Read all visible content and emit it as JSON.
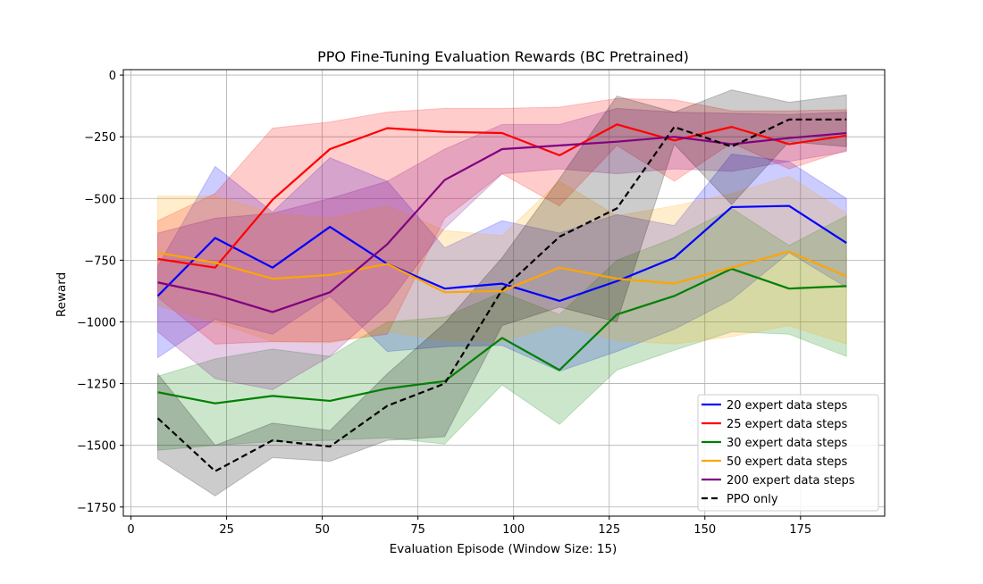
{
  "chart_data": {
    "type": "line",
    "title": "PPO Fine-Tuning Evaluation Rewards (BC Pretrained)",
    "xlabel": "Evaluation Episode (Window Size: 15)",
    "ylabel": "Reward",
    "xlim": [
      -2,
      197
    ],
    "ylim": [
      -1787,
      22
    ],
    "xticks": [
      0,
      25,
      50,
      75,
      100,
      125,
      150,
      175
    ],
    "yticks": [
      0,
      -250,
      -500,
      -750,
      -1000,
      -1250,
      -1500,
      -1750
    ],
    "xtick_labels": [
      "0",
      "25",
      "50",
      "75",
      "100",
      "125",
      "150",
      "175"
    ],
    "ytick_labels": [
      "0",
      "−250",
      "−500",
      "−750",
      "−1000",
      "−1250",
      "−1500",
      "−1750"
    ],
    "grid": true,
    "legend_position": "lower-right",
    "x": [
      7,
      22,
      37,
      52,
      67,
      82,
      97,
      112,
      127,
      142,
      157,
      172,
      187
    ],
    "series": [
      {
        "name": "20 expert data steps",
        "color": "#0000ff",
        "dash": "solid",
        "values": [
          -895,
          -660,
          -780,
          -615,
          -765,
          -865,
          -845,
          -915,
          -835,
          -740,
          -535,
          -530,
          -680
        ],
        "upper": [
          -775,
          -370,
          -555,
          -335,
          -430,
          -700,
          -590,
          -640,
          -565,
          -610,
          -320,
          -350,
          -500
        ],
        "lower": [
          -1145,
          -990,
          -1050,
          -895,
          -1120,
          -1100,
          -1095,
          -1200,
          -1120,
          -1030,
          -910,
          -720,
          -860
        ]
      },
      {
        "name": "25 expert data steps",
        "color": "#ff0000",
        "dash": "solid",
        "values": [
          -745,
          -780,
          -505,
          -300,
          -215,
          -230,
          -235,
          -325,
          -200,
          -265,
          -210,
          -280,
          -245
        ],
        "upper": [
          -590,
          -480,
          -215,
          -190,
          -150,
          -135,
          -135,
          -130,
          -95,
          -100,
          -145,
          -145,
          -140
        ],
        "lower": [
          -900,
          -1090,
          -1080,
          -1080,
          -1050,
          -580,
          -400,
          -530,
          -285,
          -430,
          -275,
          -380,
          -305
        ]
      },
      {
        "name": "30 expert data steps",
        "color": "#008000",
        "dash": "solid",
        "values": [
          -1285,
          -1330,
          -1300,
          -1320,
          -1270,
          -1240,
          -1065,
          -1195,
          -970,
          -895,
          -785,
          -865,
          -855
        ],
        "upper": [
          -1220,
          -1150,
          -1110,
          -1140,
          -1000,
          -980,
          -880,
          -970,
          -750,
          -660,
          -540,
          -690,
          -570
        ],
        "lower": [
          -1520,
          -1500,
          -1485,
          -1480,
          -1470,
          -1495,
          -1255,
          -1415,
          -1195,
          -1115,
          -1040,
          -1050,
          -1140
        ]
      },
      {
        "name": "50 expert data steps",
        "color": "#ffa500",
        "dash": "solid",
        "values": [
          -720,
          -760,
          -825,
          -810,
          -765,
          -880,
          -875,
          -780,
          -825,
          -845,
          -780,
          -715,
          -815
        ],
        "upper": [
          -490,
          -490,
          -560,
          -580,
          -530,
          -630,
          -650,
          -430,
          -570,
          -530,
          -480,
          -410,
          -560
        ],
        "lower": [
          -935,
          -1000,
          -1080,
          -1085,
          -1040,
          -1075,
          -1080,
          -1010,
          -1075,
          -1090,
          -1060,
          -1015,
          -1090
        ]
      },
      {
        "name": "200 expert data steps",
        "color": "#800080",
        "dash": "solid",
        "values": [
          -840,
          -890,
          -960,
          -880,
          -685,
          -425,
          -300,
          -285,
          -270,
          -250,
          -280,
          -255,
          -235
        ],
        "upper": [
          -640,
          -580,
          -560,
          -500,
          -430,
          -300,
          -200,
          -200,
          -135,
          -150,
          -155,
          -160,
          -150
        ],
        "lower": [
          -1040,
          -1230,
          -1275,
          -1140,
          -930,
          -620,
          -400,
          -380,
          -400,
          -380,
          -390,
          -350,
          -310
        ]
      },
      {
        "name": "PPO only",
        "color": "#000000",
        "dash": "dashed",
        "values": [
          -1390,
          -1605,
          -1480,
          -1505,
          -1340,
          -1250,
          -870,
          -655,
          -540,
          -210,
          -290,
          -180,
          -180
        ],
        "upper": [
          -1210,
          -1500,
          -1410,
          -1440,
          -1210,
          -1005,
          -740,
          -420,
          -85,
          -150,
          -60,
          -110,
          -80
        ],
        "lower": [
          -1555,
          -1705,
          -1550,
          -1565,
          -1480,
          -1465,
          -1015,
          -940,
          -1000,
          -280,
          -525,
          -270,
          -290
        ]
      }
    ]
  }
}
